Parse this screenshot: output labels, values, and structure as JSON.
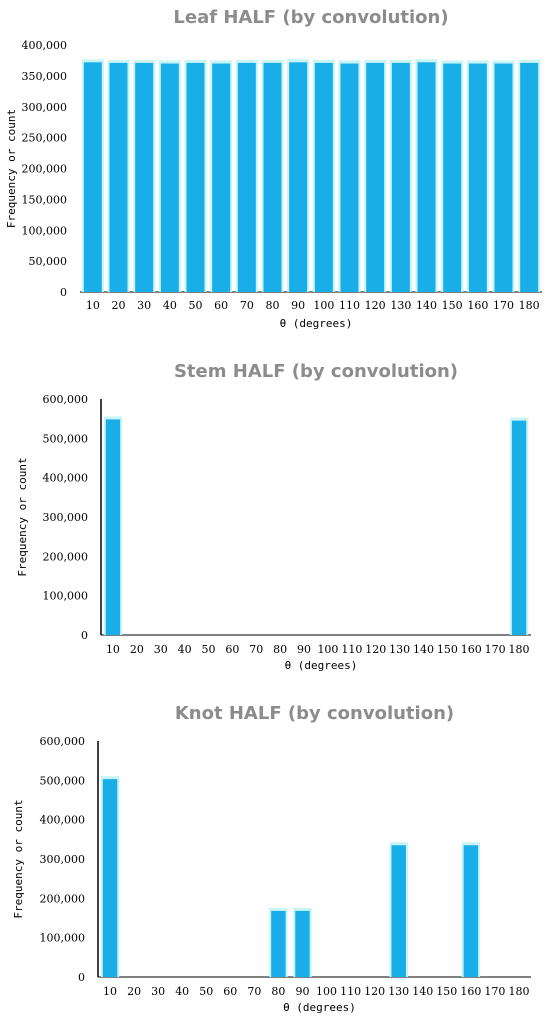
{
  "chart_data": [
    {
      "type": "bar",
      "title": "Leaf HALF (by convolution)",
      "xlabel": "θ (degrees)",
      "ylabel": "Frequency or count",
      "categories": [
        "10",
        "20",
        "30",
        "40",
        "50",
        "60",
        "70",
        "80",
        "90",
        "100",
        "110",
        "120",
        "130",
        "140",
        "150",
        "160",
        "170",
        "180"
      ],
      "values": [
        372000,
        371000,
        371000,
        370000,
        371000,
        370000,
        371000,
        371000,
        372000,
        371000,
        370000,
        371000,
        371000,
        372000,
        370000,
        370000,
        370000,
        371000
      ],
      "ylim": [
        0,
        400000
      ],
      "yticks": [
        "0",
        "50,000",
        "100,000",
        "150,000",
        "200,000",
        "250,000",
        "300,000",
        "350,000",
        "400,000"
      ],
      "grid": false,
      "bar_color": "#1aaee8"
    },
    {
      "type": "bar",
      "title": "Stem HALF (by convolution)",
      "xlabel": "θ (degrees)",
      "ylabel": "Frequency or count",
      "categories": [
        "10",
        "20",
        "30",
        "40",
        "50",
        "60",
        "70",
        "80",
        "90",
        "100",
        "110",
        "120",
        "130",
        "140",
        "150",
        "160",
        "170",
        "180"
      ],
      "values": [
        548000,
        0,
        0,
        0,
        0,
        0,
        0,
        0,
        0,
        0,
        0,
        0,
        0,
        0,
        0,
        0,
        0,
        545000
      ],
      "ylim": [
        0,
        600000
      ],
      "yticks": [
        "0",
        "100,000",
        "200,000",
        "300,000",
        "400,000",
        "500,000",
        "600,000"
      ],
      "grid": false,
      "bar_color": "#1aaee8"
    },
    {
      "type": "bar",
      "title": "Knot HALF (by convolution)",
      "xlabel": "θ (degrees)",
      "ylabel": "Frequency or count",
      "categories": [
        "10",
        "20",
        "30",
        "40",
        "50",
        "60",
        "70",
        "80",
        "90",
        "100",
        "110",
        "120",
        "130",
        "140",
        "150",
        "160",
        "170",
        "180"
      ],
      "values": [
        503000,
        0,
        0,
        0,
        0,
        0,
        0,
        168000,
        168000,
        0,
        0,
        0,
        335000,
        0,
        0,
        335000,
        0,
        0
      ],
      "ylim": [
        0,
        600000
      ],
      "yticks": [
        "0",
        "100,000",
        "200,000",
        "300,000",
        "400,000",
        "500,000",
        "600,000"
      ],
      "grid": false,
      "bar_color": "#1aaee8"
    }
  ]
}
